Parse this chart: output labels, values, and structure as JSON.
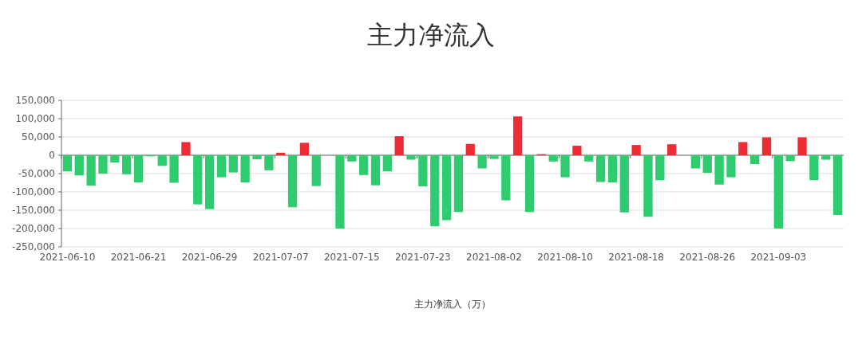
{
  "chart_data": {
    "type": "bar",
    "title": "主力净流入",
    "xlabel": "主力净流入（万）",
    "categories": [
      "2021-06-10",
      null,
      null,
      null,
      null,
      null,
      "2021-06-21",
      null,
      null,
      null,
      null,
      null,
      "2021-06-29",
      null,
      null,
      null,
      null,
      null,
      "2021-07-07",
      null,
      null,
      null,
      null,
      null,
      "2021-07-15",
      null,
      null,
      null,
      null,
      null,
      "2021-07-23",
      null,
      null,
      null,
      null,
      null,
      "2021-08-02",
      null,
      null,
      null,
      null,
      null,
      "2021-08-10",
      null,
      null,
      null,
      null,
      null,
      "2021-08-18",
      null,
      null,
      null,
      null,
      null,
      "2021-08-26",
      null,
      null,
      null,
      null,
      null,
      "2021-09-03",
      null,
      null,
      null,
      null,
      null
    ],
    "values": [
      -44000,
      -55000,
      -83000,
      -50000,
      -20000,
      -52000,
      -74000,
      -3000,
      -29000,
      -75000,
      36000,
      -134000,
      -147000,
      -60000,
      -47000,
      -74000,
      -11000,
      -41000,
      7000,
      -142000,
      34000,
      -84000,
      0,
      -200000,
      -17000,
      -54000,
      -82000,
      -44000,
      52000,
      -12000,
      -85000,
      -194000,
      -177000,
      -155000,
      31000,
      -36000,
      -10000,
      -123000,
      106000,
      -155000,
      3000,
      -17000,
      -60000,
      26000,
      -17000,
      -73000,
      -74000,
      -156000,
      28000,
      -168000,
      -68000,
      30000,
      0,
      -36000,
      -48000,
      -80000,
      -60000,
      36000,
      -24000,
      49000,
      -200000,
      -16000,
      49000,
      -68000,
      -12000,
      -163000
    ],
    "colors": [
      "#2ecc6e",
      "#2ecc6e",
      "#2ecc6e",
      "#2ecc6e",
      "#2ecc6e",
      "#2ecc6e",
      "#2ecc6e",
      "#2ecc6e",
      "#2ecc6e",
      "#2ecc6e",
      "#ee2c36",
      "#2ecc6e",
      "#2ecc6e",
      "#2ecc6e",
      "#2ecc6e",
      "#2ecc6e",
      "#2ecc6e",
      "#2ecc6e",
      "#ee2c36",
      "#2ecc6e",
      "#ee2c36",
      "#2ecc6e",
      "#2ecc6e",
      "#2ecc6e",
      "#2ecc6e",
      "#2ecc6e",
      "#2ecc6e",
      "#2ecc6e",
      "#ee2c36",
      "#2ecc6e",
      "#2ecc6e",
      "#2ecc6e",
      "#2ecc6e",
      "#2ecc6e",
      "#ee2c36",
      "#2ecc6e",
      "#2ecc6e",
      "#2ecc6e",
      "#ee2c36",
      "#2ecc6e",
      "#ee2c36",
      "#2ecc6e",
      "#2ecc6e",
      "#ee2c36",
      "#2ecc6e",
      "#2ecc6e",
      "#2ecc6e",
      "#2ecc6e",
      "#ee2c36",
      "#2ecc6e",
      "#2ecc6e",
      "#ee2c36",
      "#2ecc6e",
      "#2ecc6e",
      "#2ecc6e",
      "#2ecc6e",
      "#2ecc6e",
      "#ee2c36",
      "#2ecc6e",
      "#ee2c36",
      "#2ecc6e",
      "#2ecc6e",
      "#ee2c36",
      "#2ecc6e",
      "#2ecc6e",
      "#2ecc6e"
    ],
    "ylim": [
      -250000,
      150000
    ],
    "yticks": [
      {
        "value": -250000,
        "label": "-250,000"
      },
      {
        "value": -200000,
        "label": "-200,000"
      },
      {
        "value": -150000,
        "label": "-150,000"
      },
      {
        "value": -100000,
        "label": "-100,000"
      },
      {
        "value": -50000,
        "label": "-50,000"
      },
      {
        "value": 0,
        "label": "0"
      },
      {
        "value": 50000,
        "label": "50,000"
      },
      {
        "value": 100000,
        "label": "100,000"
      },
      {
        "value": 150000,
        "label": "150,000"
      }
    ],
    "grid": "y"
  }
}
